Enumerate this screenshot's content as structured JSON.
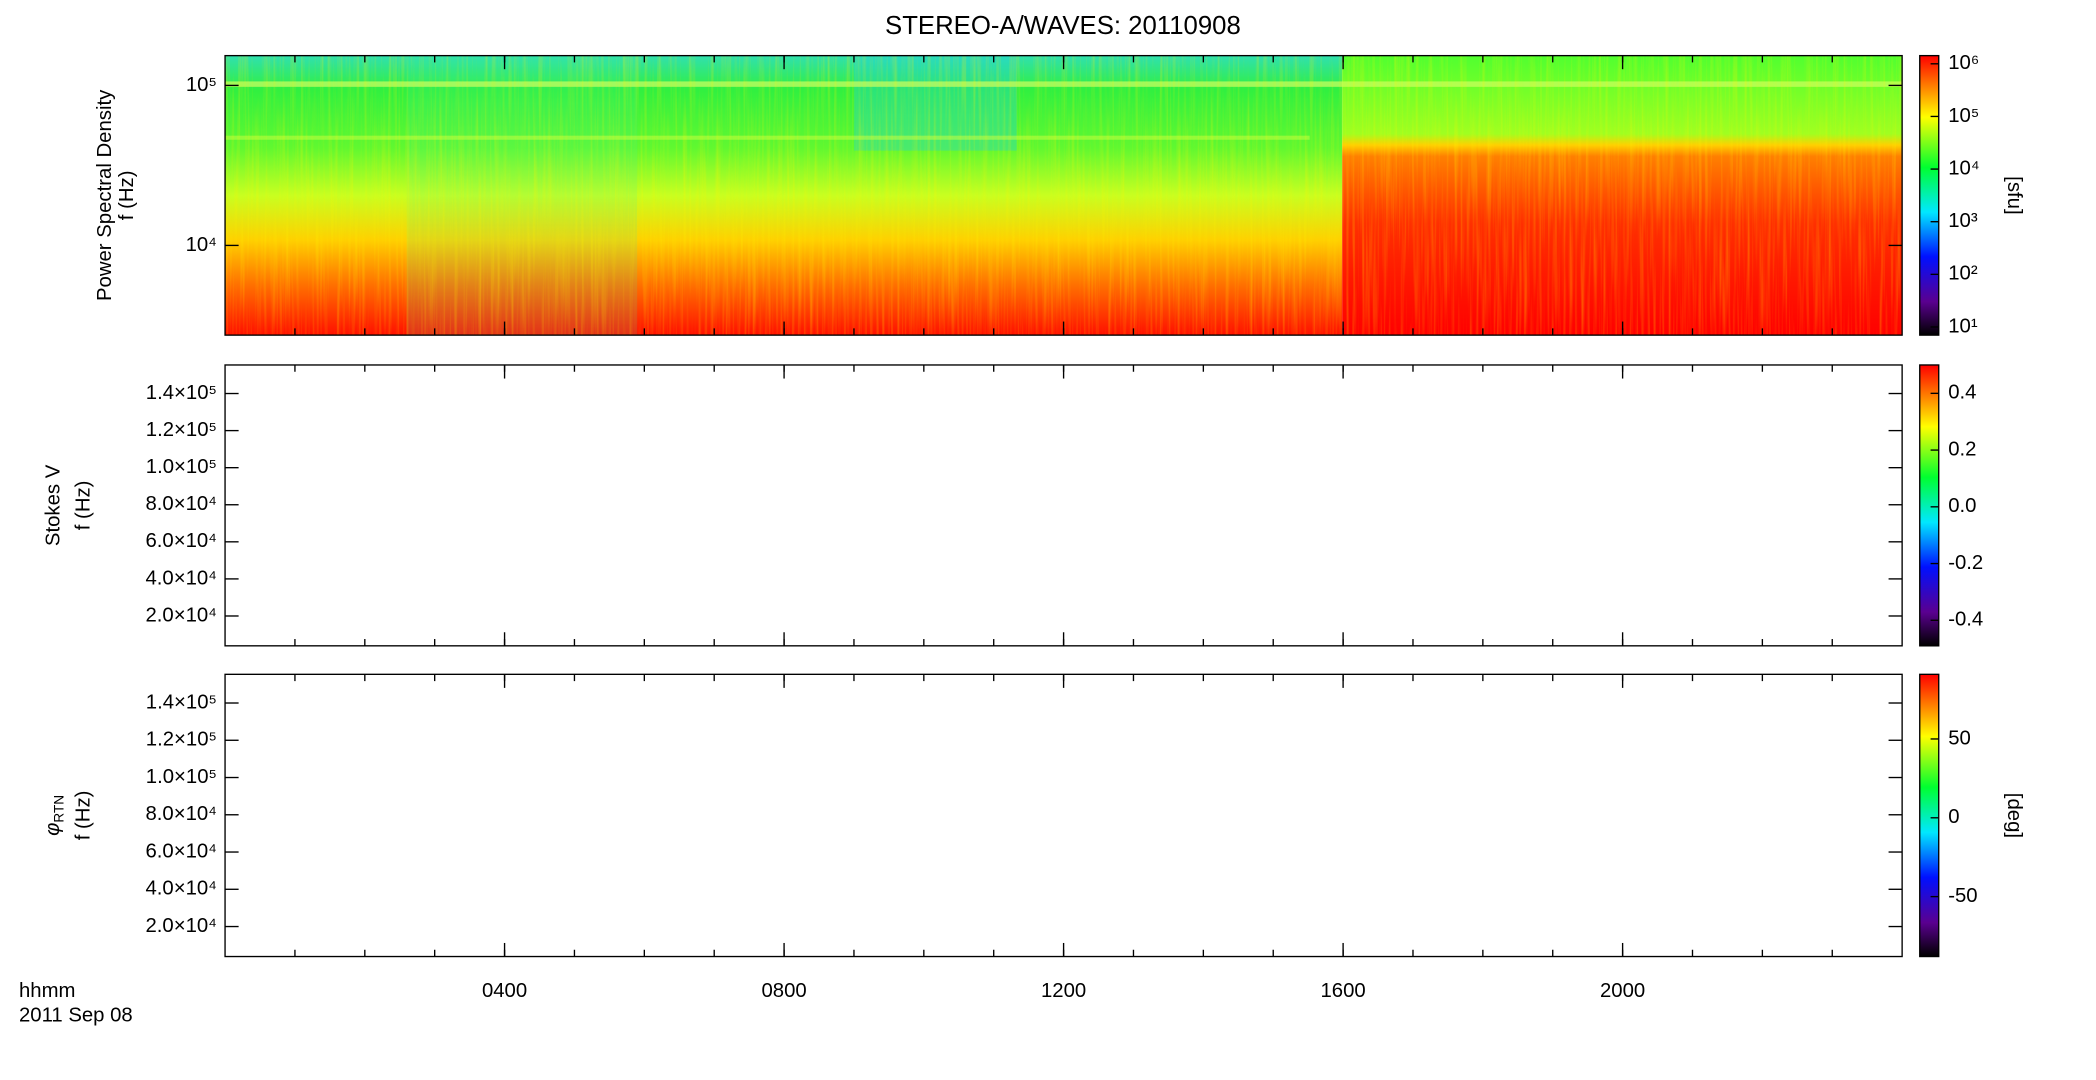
{
  "chart_data": {
    "type": "spectrogram",
    "title": "STEREO-A/WAVES: 20110908",
    "x_label": "hhmm",
    "date_label": "2011 Sep 08",
    "xlim": [
      0,
      24
    ],
    "xticks": [
      {
        "value": 4,
        "label": "0400"
      },
      {
        "value": 8,
        "label": "0800"
      },
      {
        "value": 12,
        "label": "1200"
      },
      {
        "value": 16,
        "label": "1600"
      },
      {
        "value": 20,
        "label": "2000"
      }
    ],
    "panels": [
      {
        "ylabel": "Power Spectral Density",
        "yunit": "f (Hz)",
        "ylog": true,
        "ylim": [
          2750,
          153500
        ],
        "yticks": [
          {
            "value": 10000,
            "label": "10⁴"
          },
          {
            "value": 100000,
            "label": "10⁵"
          }
        ],
        "colorbar": {
          "label": "[sfu]",
          "log": true,
          "lim": [
            7,
            1430000
          ],
          "ticks": [
            {
              "value": 10,
              "label": "10¹"
            },
            {
              "value": 100,
              "label": "10²"
            },
            {
              "value": 1000,
              "label": "10³"
            },
            {
              "value": 10000,
              "label": "10⁴"
            },
            {
              "value": 100000,
              "label": "10⁵"
            },
            {
              "value": 1000000,
              "label": "10⁶"
            }
          ]
        }
      },
      {
        "ylabel": "Stokes V",
        "yunit": "f (Hz)",
        "ylog": false,
        "ylim": [
          3900,
          155400
        ],
        "yticks": [
          {
            "value": 20000,
            "label": "2.0×10⁴"
          },
          {
            "value": 40000,
            "label": "4.0×10⁴"
          },
          {
            "value": 60000,
            "label": "6.0×10⁴"
          },
          {
            "value": 80000,
            "label": "8.0×10⁴"
          },
          {
            "value": 100000,
            "label": "1.0×10⁵"
          },
          {
            "value": 120000,
            "label": "1.2×10⁵"
          },
          {
            "value": 140000,
            "label": "1.4×10⁵"
          }
        ],
        "colorbar": {
          "log": false,
          "lim": [
            -0.49,
            0.5
          ],
          "ticks": [
            -0.4,
            -0.2,
            {
              "value": 0,
              "label": "0.0"
            },
            0.2,
            0.4
          ]
        }
      },
      {
        "ylabel_symbol": "φ",
        "ylabel_subscript": "RTN",
        "yunit": "f (Hz)",
        "ylog": false,
        "ylim": [
          3900,
          155400
        ],
        "yticks": [
          {
            "value": 20000,
            "label": "2.0×10⁴"
          },
          {
            "value": 40000,
            "label": "4.0×10⁴"
          },
          {
            "value": 60000,
            "label": "6.0×10⁴"
          },
          {
            "value": 80000,
            "label": "8.0×10⁴"
          },
          {
            "value": 100000,
            "label": "1.0×10⁵"
          },
          {
            "value": 120000,
            "label": "1.2×10⁵"
          },
          {
            "value": 140000,
            "label": "1.4×10⁵"
          }
        ],
        "colorbar": {
          "label": "[deg]",
          "log": false,
          "lim": [
            -88,
            91
          ],
          "ticks": [
            -50,
            0,
            50
          ]
        }
      }
    ]
  }
}
